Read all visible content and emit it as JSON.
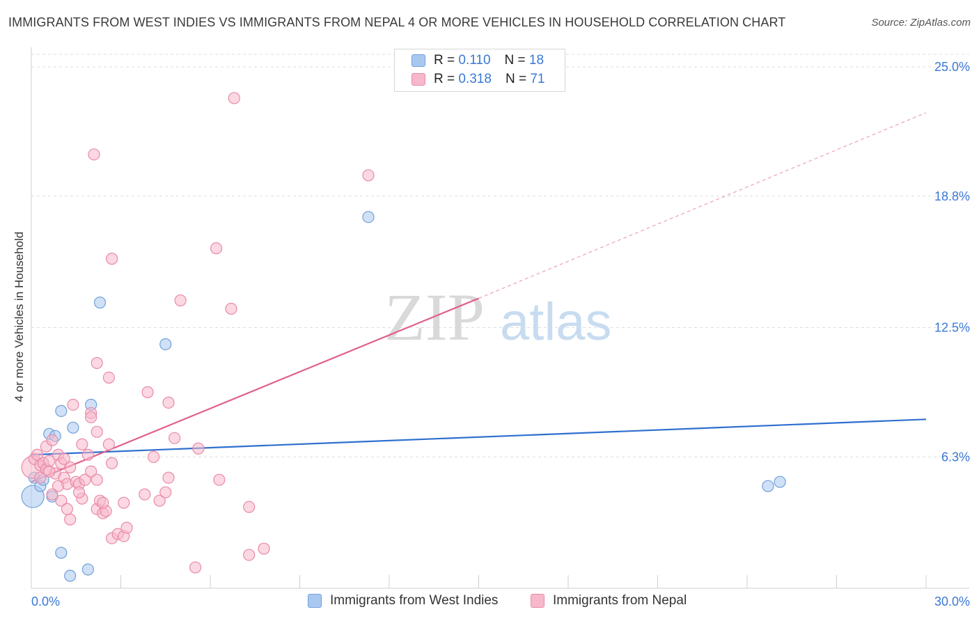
{
  "header": {
    "title": "IMMIGRANTS FROM WEST INDIES VS IMMIGRANTS FROM NEPAL 4 OR MORE VEHICLES IN HOUSEHOLD CORRELATION CHART",
    "source": "Source: ZipAtlas.com"
  },
  "watermark": {
    "zip": "ZIP",
    "atlas": "atlas"
  },
  "legend_top": {
    "rows": [
      {
        "r_label": "R =",
        "r_value": "0.110",
        "n_label": "N =",
        "n_value": "18"
      },
      {
        "r_label": "R =",
        "r_value": "0.318",
        "n_label": "N =",
        "n_value": "71"
      }
    ]
  },
  "legend_bottom": {
    "items": [
      {
        "label": "Immigrants from West Indies"
      },
      {
        "label": "Immigrants from Nepal"
      }
    ]
  },
  "colors": {
    "blue_fill": "#a9c8f0",
    "blue_stroke": "#6f9fd8",
    "blue_line": "#2f6fcf",
    "pink_fill": "#f7b8cb",
    "pink_stroke": "#e88aa8",
    "pink_line": "#e0608a",
    "grid": "#dddddd",
    "tick_text": "#3a78d4"
  },
  "chart_data": {
    "type": "scatter",
    "title": "IMMIGRANTS FROM WEST INDIES VS IMMIGRANTS FROM NEPAL 4 OR MORE VEHICLES IN HOUSEHOLD CORRELATION CHART",
    "xlabel": "",
    "ylabel": "4 or more Vehicles in Household",
    "xlim": [
      0,
      30
    ],
    "ylim": [
      0,
      25.0
    ],
    "x_tick_labels": [
      {
        "value": 0,
        "label": "0.0%"
      },
      {
        "value": 30,
        "label": "30.0%"
      }
    ],
    "y_tick_labels": [
      {
        "value": 6.3,
        "label": "6.3%"
      },
      {
        "value": 12.5,
        "label": "12.5%"
      },
      {
        "value": 18.8,
        "label": "18.8%"
      },
      {
        "value": 25.0,
        "label": "25.0%"
      }
    ],
    "grid": true,
    "legend_position": "top-center",
    "series": [
      {
        "name": "Immigrants from West Indies",
        "color": "blue",
        "R": 0.11,
        "N": 18,
        "points": [
          {
            "x": 0.05,
            "y": 4.4,
            "big": true
          },
          {
            "x": 0.1,
            "y": 5.3
          },
          {
            "x": 0.3,
            "y": 4.9
          },
          {
            "x": 0.4,
            "y": 5.2
          },
          {
            "x": 0.6,
            "y": 7.4
          },
          {
            "x": 0.8,
            "y": 7.3
          },
          {
            "x": 0.7,
            "y": 4.4
          },
          {
            "x": 1.0,
            "y": 8.5
          },
          {
            "x": 1.4,
            "y": 7.7
          },
          {
            "x": 2.0,
            "y": 8.8
          },
          {
            "x": 2.3,
            "y": 13.7
          },
          {
            "x": 4.5,
            "y": 11.7
          },
          {
            "x": 11.3,
            "y": 17.8
          },
          {
            "x": 1.0,
            "y": 1.7
          },
          {
            "x": 1.3,
            "y": 0.6
          },
          {
            "x": 1.9,
            "y": 0.9
          },
          {
            "x": 24.7,
            "y": 4.9
          },
          {
            "x": 25.1,
            "y": 5.1
          }
        ],
        "trend": {
          "x0": 0,
          "y0": 6.4,
          "x1": 30,
          "y1": 8.1
        }
      },
      {
        "name": "Immigrants from Nepal",
        "color": "pink",
        "R": 0.318,
        "N": 71,
        "points": [
          {
            "x": 0.05,
            "y": 5.8,
            "big": true
          },
          {
            "x": 0.1,
            "y": 6.2
          },
          {
            "x": 0.2,
            "y": 6.4
          },
          {
            "x": 0.3,
            "y": 5.9
          },
          {
            "x": 0.4,
            "y": 6.0
          },
          {
            "x": 0.5,
            "y": 5.7
          },
          {
            "x": 0.6,
            "y": 6.1
          },
          {
            "x": 0.5,
            "y": 6.8
          },
          {
            "x": 0.7,
            "y": 7.1
          },
          {
            "x": 0.8,
            "y": 5.5
          },
          {
            "x": 0.9,
            "y": 6.4
          },
          {
            "x": 1.0,
            "y": 6.0
          },
          {
            "x": 1.1,
            "y": 5.3
          },
          {
            "x": 1.2,
            "y": 5.0
          },
          {
            "x": 1.3,
            "y": 5.8
          },
          {
            "x": 1.5,
            "y": 5.1
          },
          {
            "x": 1.6,
            "y": 5.0
          },
          {
            "x": 1.8,
            "y": 5.2
          },
          {
            "x": 2.0,
            "y": 5.6
          },
          {
            "x": 2.2,
            "y": 5.2
          },
          {
            "x": 0.9,
            "y": 4.9
          },
          {
            "x": 0.7,
            "y": 4.5
          },
          {
            "x": 1.0,
            "y": 4.2
          },
          {
            "x": 1.3,
            "y": 3.3
          },
          {
            "x": 1.7,
            "y": 4.3
          },
          {
            "x": 1.2,
            "y": 3.8
          },
          {
            "x": 1.6,
            "y": 4.6
          },
          {
            "x": 1.7,
            "y": 6.9
          },
          {
            "x": 1.9,
            "y": 6.4
          },
          {
            "x": 2.0,
            "y": 8.4
          },
          {
            "x": 2.0,
            "y": 8.2
          },
          {
            "x": 1.4,
            "y": 8.8
          },
          {
            "x": 2.2,
            "y": 7.5
          },
          {
            "x": 2.2,
            "y": 10.8
          },
          {
            "x": 2.6,
            "y": 10.1
          },
          {
            "x": 2.6,
            "y": 6.9
          },
          {
            "x": 2.7,
            "y": 6.0
          },
          {
            "x": 2.7,
            "y": 15.8
          },
          {
            "x": 2.1,
            "y": 20.8
          },
          {
            "x": 2.2,
            "y": 3.8
          },
          {
            "x": 2.3,
            "y": 4.2
          },
          {
            "x": 2.4,
            "y": 3.6
          },
          {
            "x": 2.5,
            "y": 3.7
          },
          {
            "x": 2.4,
            "y": 4.1
          },
          {
            "x": 2.7,
            "y": 2.4
          },
          {
            "x": 2.9,
            "y": 2.6
          },
          {
            "x": 3.1,
            "y": 2.5
          },
          {
            "x": 3.2,
            "y": 2.9
          },
          {
            "x": 3.1,
            "y": 4.1
          },
          {
            "x": 3.8,
            "y": 4.5
          },
          {
            "x": 3.9,
            "y": 9.4
          },
          {
            "x": 4.1,
            "y": 6.3
          },
          {
            "x": 4.3,
            "y": 4.2
          },
          {
            "x": 4.5,
            "y": 4.6
          },
          {
            "x": 4.6,
            "y": 8.9
          },
          {
            "x": 4.6,
            "y": 5.3
          },
          {
            "x": 4.8,
            "y": 7.2
          },
          {
            "x": 5.0,
            "y": 13.8
          },
          {
            "x": 5.6,
            "y": 6.7
          },
          {
            "x": 5.5,
            "y": 1.0
          },
          {
            "x": 6.2,
            "y": 16.3
          },
          {
            "x": 6.3,
            "y": 5.2
          },
          {
            "x": 6.7,
            "y": 13.4
          },
          {
            "x": 6.8,
            "y": 23.5
          },
          {
            "x": 7.3,
            "y": 1.6
          },
          {
            "x": 7.3,
            "y": 3.9
          },
          {
            "x": 7.8,
            "y": 1.9
          },
          {
            "x": 11.3,
            "y": 19.8
          },
          {
            "x": 0.3,
            "y": 5.3
          },
          {
            "x": 0.6,
            "y": 5.6
          },
          {
            "x": 1.1,
            "y": 6.2
          }
        ],
        "trend": {
          "x0": 0,
          "y0": 5.1,
          "x1": 15,
          "y1": 13.9
        },
        "trend_dashed": {
          "x0": 15,
          "y0": 13.9,
          "x1": 30,
          "y1": 22.8
        }
      }
    ]
  }
}
